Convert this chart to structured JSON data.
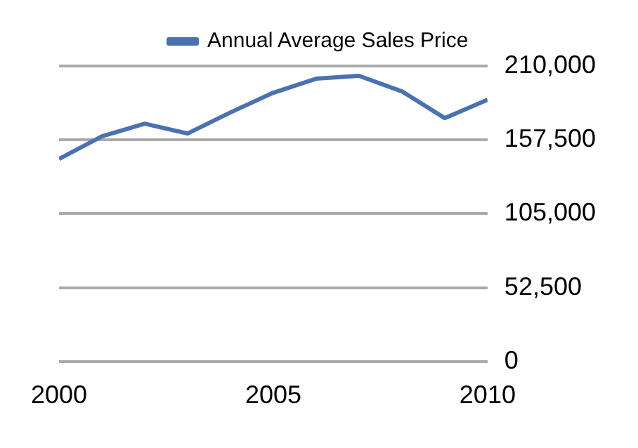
{
  "chart_data": {
    "type": "line",
    "x": [
      2000,
      2001,
      2002,
      2003,
      2004,
      2005,
      2006,
      2007,
      2008,
      2009,
      2010
    ],
    "series": [
      {
        "name": "Annual Average Sales Price",
        "color": "#4a72b0",
        "values": [
          144000,
          160000,
          169000,
          162000,
          177000,
          191000,
          201000,
          203000,
          192000,
          173000,
          186000
        ]
      }
    ],
    "xlim": [
      2000,
      2010
    ],
    "xticks": [
      2000,
      2005,
      2010
    ],
    "ylim": [
      0,
      210000
    ],
    "yticks": [
      {
        "value": 0,
        "label": "0"
      },
      {
        "value": 52500,
        "label": "52,500"
      },
      {
        "value": 105000,
        "label": "105,000"
      },
      {
        "value": 157500,
        "label": "157,500"
      },
      {
        "value": 210000,
        "label": "210,000"
      }
    ],
    "grid": "y",
    "legend": "top",
    "marker": "none",
    "line_style": "solid"
  }
}
